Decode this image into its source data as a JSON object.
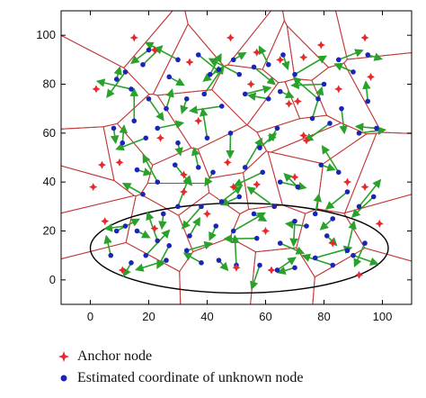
{
  "chart_data": {
    "type": "scatter",
    "xlim": [
      -10,
      110
    ],
    "ylim": [
      -10,
      110
    ],
    "xticks": [
      "0",
      "20",
      "40",
      "60",
      "80",
      "100"
    ],
    "yticks": [
      "0",
      "20",
      "40",
      "60",
      "80",
      "100"
    ],
    "grid": false,
    "legend_position": "bottom",
    "colors": {
      "anchor": "#e8282b",
      "unknown": "#1a24b8",
      "arrow": "#2aa12a",
      "voronoi": "#c23a3a",
      "ellipse": "#000000"
    },
    "series": [
      {
        "name": "Anchor node",
        "marker": "red-diamond-star",
        "points": [
          [
            2,
            78
          ],
          [
            15,
            99
          ],
          [
            22,
            94
          ],
          [
            34,
            89
          ],
          [
            48,
            99
          ],
          [
            57,
            93
          ],
          [
            65,
            90
          ],
          [
            73,
            91
          ],
          [
            79,
            96
          ],
          [
            94,
            99
          ],
          [
            4,
            47
          ],
          [
            10,
            48
          ],
          [
            1,
            38
          ],
          [
            37,
            65
          ],
          [
            55,
            80
          ],
          [
            68,
            72
          ],
          [
            71,
            73
          ],
          [
            24,
            58
          ],
          [
            47,
            48
          ],
          [
            73,
            59
          ],
          [
            74,
            57
          ],
          [
            85,
            78
          ],
          [
            96,
            83
          ],
          [
            49,
            38
          ],
          [
            57,
            39
          ],
          [
            32,
            36
          ],
          [
            40,
            27
          ],
          [
            70,
            42
          ],
          [
            88,
            40
          ],
          [
            94,
            38
          ],
          [
            83,
            15
          ],
          [
            5,
            24
          ],
          [
            22,
            21
          ],
          [
            60,
            20
          ],
          [
            99,
            23
          ],
          [
            50,
            5
          ],
          [
            62,
            4
          ],
          [
            92,
            2
          ],
          [
            11,
            4
          ],
          [
            32,
            43
          ]
        ]
      },
      {
        "name": "Estimated coordinate of unknown node",
        "marker": "blue-dot",
        "points": [
          [
            9,
            82
          ],
          [
            12,
            85
          ],
          [
            18,
            88
          ],
          [
            20,
            94
          ],
          [
            27,
            83
          ],
          [
            30,
            90
          ],
          [
            37,
            92
          ],
          [
            41,
            84
          ],
          [
            44,
            86
          ],
          [
            49,
            90
          ],
          [
            51,
            84
          ],
          [
            56,
            87
          ],
          [
            61,
            88
          ],
          [
            66,
            92
          ],
          [
            70,
            84
          ],
          [
            80,
            80
          ],
          [
            85,
            90
          ],
          [
            90,
            85
          ],
          [
            95,
            92
          ],
          [
            14,
            78
          ],
          [
            20,
            74
          ],
          [
            26,
            70
          ],
          [
            33,
            74
          ],
          [
            39,
            76
          ],
          [
            45,
            71
          ],
          [
            53,
            76
          ],
          [
            61,
            74
          ],
          [
            65,
            77
          ],
          [
            78,
            74
          ],
          [
            86,
            70
          ],
          [
            95,
            73
          ],
          [
            8,
            62
          ],
          [
            15,
            65
          ],
          [
            19,
            58
          ],
          [
            23,
            62
          ],
          [
            11,
            56
          ],
          [
            30,
            56
          ],
          [
            40,
            58
          ],
          [
            48,
            60
          ],
          [
            58,
            54
          ],
          [
            64,
            62
          ],
          [
            76,
            66
          ],
          [
            82,
            64
          ],
          [
            92,
            60
          ],
          [
            98,
            62
          ],
          [
            16,
            45
          ],
          [
            23,
            40
          ],
          [
            29,
            47
          ],
          [
            37,
            46
          ],
          [
            42,
            44
          ],
          [
            53,
            46
          ],
          [
            59,
            44
          ],
          [
            65,
            40
          ],
          [
            71,
            38
          ],
          [
            79,
            47
          ],
          [
            85,
            44
          ],
          [
            88,
            36
          ],
          [
            18,
            35
          ],
          [
            25,
            27
          ],
          [
            30,
            30
          ],
          [
            38,
            30
          ],
          [
            45,
            32
          ],
          [
            51,
            34
          ],
          [
            56,
            27
          ],
          [
            63,
            30
          ],
          [
            70,
            24
          ],
          [
            77,
            27
          ],
          [
            83,
            25
          ],
          [
            92,
            30
          ],
          [
            97,
            34
          ],
          [
            9,
            20
          ],
          [
            12,
            22
          ],
          [
            16,
            20
          ],
          [
            23,
            16
          ],
          [
            27,
            14
          ],
          [
            34,
            18
          ],
          [
            43,
            22
          ],
          [
            49,
            20
          ],
          [
            57,
            17
          ],
          [
            65,
            15
          ],
          [
            74,
            22
          ],
          [
            81,
            18
          ],
          [
            88,
            12
          ],
          [
            94,
            15
          ],
          [
            7,
            10
          ],
          [
            14,
            7
          ],
          [
            19,
            10
          ],
          [
            26,
            8
          ],
          [
            33,
            12
          ],
          [
            38,
            7
          ],
          [
            44,
            8
          ],
          [
            50,
            6
          ],
          [
            58,
            6
          ],
          [
            64,
            4
          ],
          [
            70,
            5
          ],
          [
            77,
            9
          ],
          [
            83,
            6
          ],
          [
            90,
            10
          ]
        ]
      }
    ]
  },
  "legend": {
    "anchor_label": "Anchor node",
    "unknown_label": "Estimated coordinate of unknown node"
  }
}
